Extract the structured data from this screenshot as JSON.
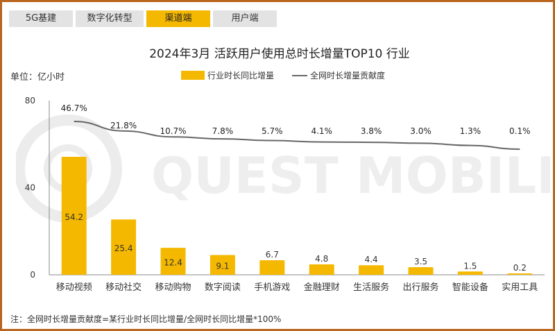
{
  "tabs": [
    {
      "label": "5G基建",
      "active": false
    },
    {
      "label": "数字化转型",
      "active": false
    },
    {
      "label": "渠道端",
      "active": true
    },
    {
      "label": "用户端",
      "active": false
    }
  ],
  "watermark": {
    "text": "QUEST MOBILE"
  },
  "unit_label": "单位：亿小时",
  "footnote": "注：全网时长增量贡献度=某行业时长同比增量/全网时长同比增量*100%",
  "colors": {
    "bar": "#f5b800",
    "bar_dark": "#f0a400",
    "line": "#666666",
    "accent_border": "#b8651e"
  },
  "chart_data": {
    "type": "bar",
    "title": "2024年3月 活跃用户使用总时长增量TOP10 行业",
    "categories": [
      "移动视频",
      "移动社交",
      "移动购物",
      "数字阅读",
      "手机游戏",
      "金融理财",
      "生活服务",
      "出行服务",
      "智能设备",
      "实用工具"
    ],
    "series": [
      {
        "name": "行业时长同比增量",
        "type": "bar",
        "values": [
          54.2,
          25.4,
          12.4,
          9.1,
          6.7,
          4.8,
          4.4,
          3.5,
          1.5,
          0.2
        ]
      },
      {
        "name": "全网时长增量贡献度",
        "type": "line",
        "labels": [
          "46.7%",
          "21.8%",
          "10.7%",
          "7.8%",
          "5.7%",
          "4.1%",
          "3.8%",
          "3.0%",
          "1.3%",
          "0.1%"
        ],
        "values": [
          46.7,
          21.8,
          10.7,
          7.8,
          5.7,
          4.1,
          3.8,
          3.0,
          1.3,
          0.1
        ]
      }
    ],
    "ylim": [
      0,
      80
    ],
    "yticks": [
      0,
      40,
      80
    ],
    "ylabel": "单位：亿小时",
    "legend": "top-center",
    "grid": false
  }
}
